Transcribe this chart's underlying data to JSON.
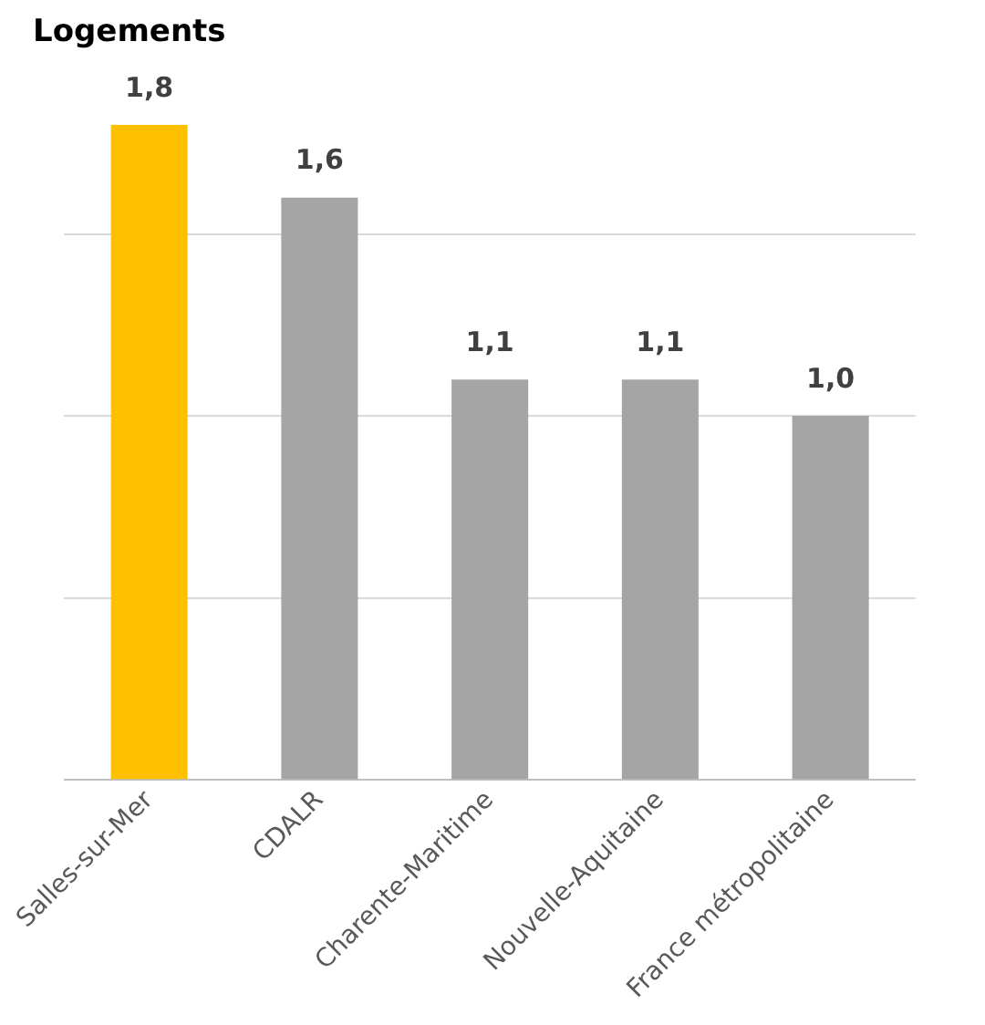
{
  "chart_data": {
    "type": "bar",
    "title": "Logements",
    "categories": [
      "Salles-sur-Mer",
      "CDALR",
      "Charente-Maritime",
      "Nouvelle-Aquitaine",
      "France métropolitaine"
    ],
    "values": [
      1.8,
      1.6,
      1.1,
      1.1,
      1.0
    ],
    "colors": [
      "#ffc000",
      "#a5a5a5",
      "#a5a5a5",
      "#a5a5a5",
      "#a5a5a5"
    ],
    "value_labels": [
      "1,8",
      "1,6",
      "1,1",
      "1,1",
      "1,0"
    ],
    "yticks": [
      {
        "value": 0,
        "label": null
      },
      {
        "value": 0.5,
        "label": null
      },
      {
        "value": 1,
        "label": null
      },
      {
        "value": 1.5,
        "label": null
      }
    ],
    "grid": "y",
    "tick_labels": "x"
  }
}
